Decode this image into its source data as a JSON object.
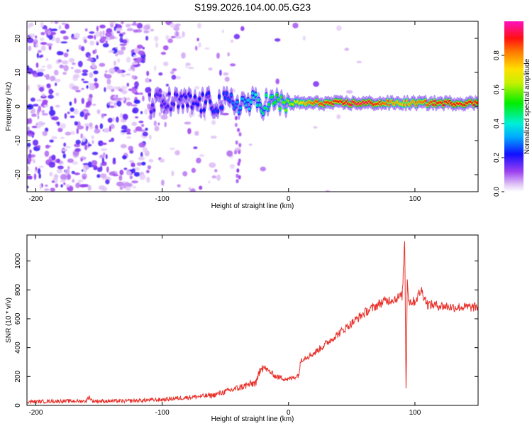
{
  "figure": {
    "title": "S199.2026.104.00.05.G23"
  },
  "chart_data": [
    {
      "type": "heatmap",
      "name": "spectrogram",
      "xlabel": "Height of straight line (km)",
      "ylabel": "Frequency (Hz)",
      "xlim": [
        -207,
        150
      ],
      "ylim": [
        -25,
        25
      ],
      "xticks": [
        -200,
        -100,
        0,
        100
      ],
      "xtick_labels": [
        "-200",
        "-100",
        "0",
        "100"
      ],
      "yticks": [
        -20,
        -10,
        0,
        10,
        20
      ],
      "ytick_labels": [
        "-20",
        "-10",
        "0",
        "10",
        "20"
      ],
      "colorbar": {
        "label": "Normalized spectral amplitude",
        "range": [
          0,
          1
        ],
        "ticks": [
          0.0,
          0.2,
          0.4,
          0.6,
          0.8
        ],
        "tick_labels": [
          "0.0",
          "0.2",
          "0.4",
          "0.6",
          "0.8"
        ],
        "colormap": "rainbow (white-violet-blue-cyan-green-yellow-orange-red-magenta)"
      },
      "signal_band": {
        "center_frequency_hz": 1,
        "description": "noise below -100 km, strong narrow band near 1 Hz from -20 km to 150 km",
        "strength_by_height": [
          {
            "x": -200,
            "amplitude": 0.12
          },
          {
            "x": -100,
            "amplitude": 0.18
          },
          {
            "x": -50,
            "amplitude": 0.25
          },
          {
            "x": -20,
            "amplitude": 0.45
          },
          {
            "x": 0,
            "amplitude": 0.6
          },
          {
            "x": 20,
            "amplitude": 0.85
          },
          {
            "x": 60,
            "amplitude": 0.95
          },
          {
            "x": 90,
            "amplitude": 0.75
          },
          {
            "x": 120,
            "amplitude": 0.9
          },
          {
            "x": 150,
            "amplitude": 0.9
          }
        ]
      }
    },
    {
      "type": "line",
      "name": "snr",
      "xlabel": "Height of straight line (km)",
      "ylabel": "SNR (10 * v/v)",
      "xlim": [
        -207,
        150
      ],
      "ylim": [
        0,
        1180
      ],
      "xticks": [
        -200,
        -100,
        0,
        100
      ],
      "xtick_labels": [
        "-200",
        "-100",
        "0",
        "100"
      ],
      "yticks": [
        0,
        200,
        400,
        600,
        800,
        1000
      ],
      "ytick_labels": [
        "0",
        "200",
        "400",
        "600",
        "800",
        "1000"
      ],
      "line_color": "#e8302a",
      "series": [
        {
          "name": "SNR",
          "x": [
            -207,
            -180,
            -160,
            -158,
            -155,
            -130,
            -100,
            -80,
            -60,
            -40,
            -25,
            -22,
            -10,
            0,
            8,
            10,
            20,
            40,
            60,
            75,
            85,
            90,
            91,
            92,
            93,
            94,
            95,
            100,
            105,
            110,
            130,
            150
          ],
          "y": [
            25,
            30,
            30,
            60,
            30,
            30,
            40,
            55,
            70,
            120,
            160,
            280,
            200,
            180,
            210,
            320,
            360,
            500,
            640,
            720,
            740,
            760,
            960,
            1170,
            60,
            900,
            720,
            720,
            800,
            700,
            680,
            680
          ]
        }
      ]
    }
  ]
}
